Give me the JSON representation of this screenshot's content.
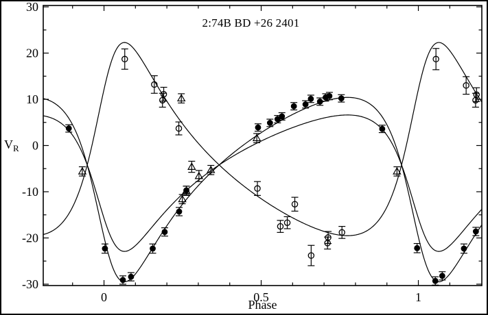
{
  "figure": {
    "title": "2:74B   BD +26 2401",
    "xlabel": "Phase",
    "ylabel_main": "V",
    "ylabel_sub": "R"
  },
  "colors": {
    "foreground": "#000000",
    "background": "#ffffff"
  },
  "chart_data": {
    "type": "scatter",
    "title": "2:74B   BD +26 2401",
    "xlabel": "Phase",
    "ylabel": "V_R",
    "x_range": [
      -0.1933,
      1.2019
    ],
    "y_range": [
      -30.3,
      30.3
    ],
    "grid": false,
    "x_major_ticks": [
      {
        "value": 0,
        "label": "0"
      },
      {
        "value": 0.5,
        "label": "0.5"
      },
      {
        "value": 1,
        "label": "1"
      }
    ],
    "x_minor_step": 0.1,
    "y_major_ticks": [
      {
        "value": 30,
        "label": "30"
      },
      {
        "value": 20,
        "label": "20"
      },
      {
        "value": 10,
        "label": "10"
      },
      {
        "value": 0,
        "label": "0"
      },
      {
        "value": -10,
        "label": "-10"
      },
      {
        "value": -20,
        "label": "-20"
      },
      {
        "value": -30,
        "label": "-30"
      }
    ],
    "y_minor_step": 5,
    "series": [
      {
        "name": "primary-filled-circles",
        "marker": "filled-circle",
        "points": [
          {
            "phase": -0.112,
            "v": 3.7,
            "err": 0.8
          },
          {
            "phase": 0.003,
            "v": -22.3,
            "err": 1.0
          },
          {
            "phase": 0.06,
            "v": -29.1,
            "err": 0.9
          },
          {
            "phase": 0.086,
            "v": -28.4,
            "err": 0.9
          },
          {
            "phase": 0.155,
            "v": -22.3,
            "err": 1.0
          },
          {
            "phase": 0.193,
            "v": -18.7,
            "err": 0.9
          },
          {
            "phase": 0.239,
            "v": -14.3,
            "err": 0.9
          },
          {
            "phase": 0.262,
            "v": -9.7,
            "err": 0.9
          },
          {
            "phase": 0.49,
            "v": 3.9,
            "err": 0.8
          },
          {
            "phase": 0.528,
            "v": 4.9,
            "err": 0.8
          },
          {
            "phase": 0.552,
            "v": 5.7,
            "err": 0.8
          },
          {
            "phase": 0.566,
            "v": 6.3,
            "err": 0.8
          },
          {
            "phase": 0.604,
            "v": 8.5,
            "err": 0.8
          },
          {
            "phase": 0.641,
            "v": 8.9,
            "err": 0.8
          },
          {
            "phase": 0.658,
            "v": 10.1,
            "err": 0.8
          },
          {
            "phase": 0.687,
            "v": 9.5,
            "err": 0.8
          },
          {
            "phase": 0.705,
            "v": 10.4,
            "err": 0.8
          },
          {
            "phase": 0.717,
            "v": 10.7,
            "err": 0.8
          },
          {
            "phase": 0.755,
            "v": 10.2,
            "err": 0.8
          },
          {
            "phase": 0.885,
            "v": 3.6,
            "err": 0.8
          },
          {
            "phase": 0.996,
            "v": -22.2,
            "err": 1.0
          },
          {
            "phase": 1.054,
            "v": -29.3,
            "err": 0.9
          },
          {
            "phase": 1.076,
            "v": -28.2,
            "err": 0.9
          },
          {
            "phase": 1.145,
            "v": -22.3,
            "err": 1.0
          },
          {
            "phase": 1.183,
            "v": -18.6,
            "err": 0.9
          }
        ]
      },
      {
        "name": "secondary-open-circles",
        "marker": "open-circle",
        "points": [
          {
            "phase": 0.066,
            "v": 18.7,
            "err": 2.2
          },
          {
            "phase": 0.16,
            "v": 13.2,
            "err": 1.9
          },
          {
            "phase": 0.186,
            "v": 9.8,
            "err": 1.5
          },
          {
            "phase": 0.19,
            "v": 11.1,
            "err": 1.5
          },
          {
            "phase": 0.238,
            "v": 3.7,
            "err": 1.4
          },
          {
            "phase": 0.488,
            "v": -9.3,
            "err": 1.5
          },
          {
            "phase": 0.561,
            "v": -17.5,
            "err": 1.3
          },
          {
            "phase": 0.583,
            "v": -16.7,
            "err": 1.3
          },
          {
            "phase": 0.607,
            "v": -12.7,
            "err": 1.5
          },
          {
            "phase": 0.659,
            "v": -23.8,
            "err": 2.2
          },
          {
            "phase": 0.711,
            "v": -21.1,
            "err": 1.3
          },
          {
            "phase": 0.713,
            "v": -19.9,
            "err": 1.3
          },
          {
            "phase": 0.757,
            "v": -18.8,
            "err": 1.3
          },
          {
            "phase": 1.056,
            "v": 18.7,
            "err": 2.3
          },
          {
            "phase": 1.152,
            "v": 13.0,
            "err": 1.9
          },
          {
            "phase": 1.182,
            "v": 9.8,
            "err": 1.5
          },
          {
            "phase": 1.185,
            "v": 11.0,
            "err": 1.5
          }
        ]
      },
      {
        "name": "blended-open-triangles",
        "marker": "open-triangle",
        "points": [
          {
            "phase": -0.069,
            "v": -5.6,
            "err": 1.0
          },
          {
            "phase": 0.246,
            "v": 10.2,
            "err": 1.0
          },
          {
            "phase": 0.249,
            "v": -11.6,
            "err": 1.0
          },
          {
            "phase": 0.262,
            "v": -9.8,
            "err": 1.0
          },
          {
            "phase": 0.279,
            "v": -4.6,
            "err": 1.2
          },
          {
            "phase": 0.302,
            "v": -6.6,
            "err": 1.2
          },
          {
            "phase": 0.34,
            "v": -5.3,
            "err": 1.0
          },
          {
            "phase": 0.486,
            "v": 1.6,
            "err": 1.0
          },
          {
            "phase": 0.932,
            "v": -5.6,
            "err": 1.0
          }
        ]
      }
    ],
    "model_curves": {
      "gamma": -4.2,
      "eccentricity": 0.42,
      "omega_deg": 129.6,
      "phase_periastron": 0.009,
      "curves": [
        {
          "name": "primary-curve",
          "K": 19.95,
          "omega_offset_deg": 0
        },
        {
          "name": "secondary-curve",
          "K": 20.9,
          "omega_offset_deg": 180
        },
        {
          "name": "blended-curve",
          "K": 14.76,
          "omega_offset_deg": 0
        }
      ]
    }
  }
}
